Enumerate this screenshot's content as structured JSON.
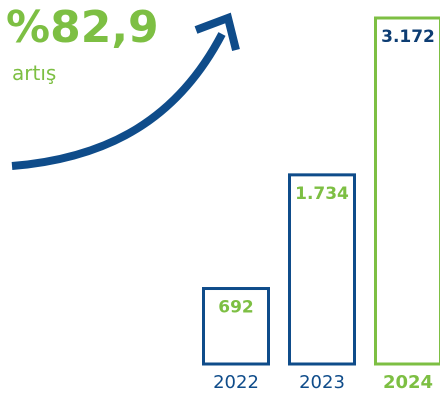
{
  "headline": {
    "value": "%82,9",
    "caption": "artış"
  },
  "colors": {
    "green": "#7dbf43",
    "blue": "#0f4c8a",
    "navy": "#0d3d73"
  },
  "chart_data": {
    "type": "bar",
    "categories": [
      "2022",
      "2023",
      "2024"
    ],
    "values": [
      692,
      1734,
      3172
    ],
    "value_labels": [
      "692",
      "1.734",
      "3.172"
    ],
    "highlight_index": 2,
    "title": "",
    "xlabel": "",
    "ylabel": ""
  }
}
